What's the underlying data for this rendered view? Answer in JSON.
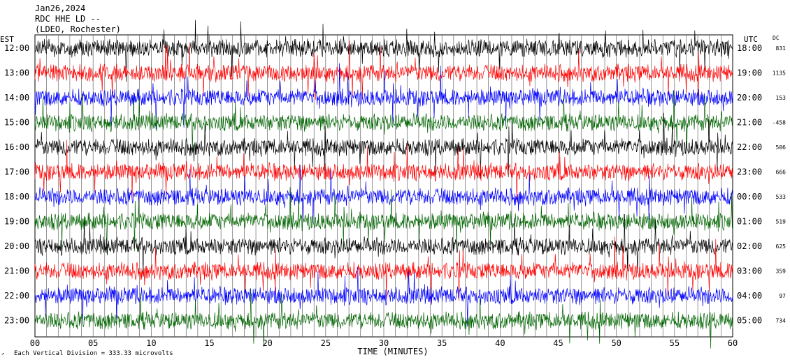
{
  "header": {
    "line1": "Jan26,2024",
    "line2": "RDC HHE LD --",
    "line3": "(LDEO, Rochester)"
  },
  "left_axis_label": "EST",
  "right_axis_label": "UTC",
  "dc_label": "DC",
  "xlabel": "TIME (MINUTES)",
  "footer": "Each Vertical Division = 333.33 microvolts",
  "colors": {
    "black": "#000000",
    "red": "#ff0000",
    "blue": "#0000ff",
    "green": "#006400"
  },
  "chart_data": {
    "type": "line",
    "xlim": [
      0,
      60
    ],
    "x_ticks": [
      "00",
      "05",
      "10",
      "15",
      "20",
      "25",
      "30",
      "35",
      "40",
      "45",
      "50",
      "55",
      "60"
    ],
    "rows": [
      {
        "est": "12:00",
        "utc": "18:00",
        "dc": "831",
        "color": "black"
      },
      {
        "est": "13:00",
        "utc": "19:00",
        "dc": "1135",
        "color": "red"
      },
      {
        "est": "14:00",
        "utc": "20:00",
        "dc": "153",
        "color": "blue"
      },
      {
        "est": "15:00",
        "utc": "21:00",
        "dc": "-458",
        "color": "green"
      },
      {
        "est": "16:00",
        "utc": "22:00",
        "dc": "506",
        "color": "black"
      },
      {
        "est": "17:00",
        "utc": "23:00",
        "dc": "666",
        "color": "red"
      },
      {
        "est": "18:00",
        "utc": "00:00",
        "dc": "533",
        "color": "blue"
      },
      {
        "est": "19:00",
        "utc": "01:00",
        "dc": "519",
        "color": "green"
      },
      {
        "est": "20:00",
        "utc": "02:00",
        "dc": "625",
        "color": "black"
      },
      {
        "est": "21:00",
        "utc": "03:00",
        "dc": "359",
        "color": "red"
      },
      {
        "est": "22:00",
        "utc": "04:00",
        "dc": "97",
        "color": "blue"
      },
      {
        "est": "23:00",
        "utc": "05:00",
        "dc": "734",
        "color": "green"
      }
    ]
  }
}
